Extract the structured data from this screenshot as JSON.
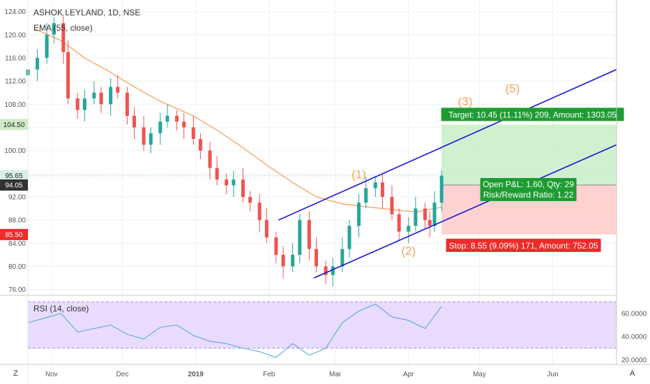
{
  "header": {
    "symbol_title": "ASHOK LEYLAND, 1D, NSE",
    "ema_label": "EMA (55, close)",
    "rsi_label": "RSI (14, close)"
  },
  "toolbar": {
    "left_corner": "Z",
    "right_corner": "A"
  },
  "colors": {
    "up": "#26a69a",
    "down": "#ef5350",
    "ema": "#f5a35c",
    "channel": "#1515d6",
    "rsi": "#4aa3d8",
    "rsi_band": "#e9dcff",
    "target_zone": "#c8eec8",
    "stop_zone": "#ffcaca",
    "target_box": "#1e9c33",
    "stop_box": "#ee2a2a",
    "price_tag_dark": "#333333",
    "price_tag_green": "#cfe9c7",
    "price_tag_red": "#ee2a2a",
    "wave_labels": "#f5a35c"
  },
  "price_tags": {
    "target": "104.50",
    "current": "95.65",
    "entry": "94.05",
    "stop": "85.50"
  },
  "trade": {
    "target_text": "Target: 10.45 (11.11%) 209, Amount: 1303.05",
    "pnl_text": "Open P&L: 1.60, Qty: 29",
    "rr_text": "Risk/Reward Ratio: 1.22",
    "stop_text": "Stop: 8.55 (9.09%) 171, Amount: 752.05"
  },
  "wave_labels": [
    {
      "text": "(1)",
      "date": "2019-03-11",
      "price": 95.2
    },
    {
      "text": "(2)",
      "date": "2019-04-01",
      "price": 82.0
    },
    {
      "text": "(3)",
      "date": "2019-04-25",
      "price": 107.8
    },
    {
      "text": "(5)",
      "date": "2019-05-15",
      "price": 110.0
    }
  ],
  "chart_data": {
    "type": "candlestick",
    "title": "ASHOK LEYLAND, 1D, NSE",
    "x_axis": {
      "type": "date",
      "range": [
        "2018-10-22",
        "2019-06-28"
      ],
      "tick_labels": [
        {
          "label": "Nov",
          "date": "2018-11-01"
        },
        {
          "label": "Dec",
          "date": "2018-12-01"
        },
        {
          "label": "2019",
          "date": "2019-01-01"
        },
        {
          "label": "Feb",
          "date": "2019-02-01"
        },
        {
          "label": "Mar",
          "date": "2019-03-01"
        },
        {
          "label": "Apr",
          "date": "2019-04-01"
        },
        {
          "label": "May",
          "date": "2019-05-01"
        },
        {
          "label": "Jun",
          "date": "2019-06-01"
        }
      ]
    },
    "price_axis": {
      "range": [
        75,
        126
      ],
      "ticks": [
        "76.00",
        "80.00",
        "84.00",
        "88.00",
        "92.00",
        "96.00",
        "100.00",
        "104.00",
        "108.00",
        "112.00",
        "116.00",
        "120.00",
        "124.00"
      ]
    },
    "rsi_axis": {
      "range": [
        16,
        75
      ],
      "ticks": [
        "20.0000",
        "40.0000",
        "60.0000"
      ],
      "bands": [
        30,
        70
      ]
    },
    "price_series": [
      {
        "date": "2018-10-22",
        "close": 114.0
      },
      {
        "date": "2018-10-26",
        "close": 116.0
      },
      {
        "date": "2018-10-30",
        "close": 120.0
      },
      {
        "date": "2018-11-02",
        "close": 122.0
      },
      {
        "date": "2018-11-06",
        "close": 117.0
      },
      {
        "date": "2018-11-08",
        "close": 109.0
      },
      {
        "date": "2018-11-12",
        "close": 107.0
      },
      {
        "date": "2018-11-15",
        "close": 109.0
      },
      {
        "date": "2018-11-19",
        "close": 110.0
      },
      {
        "date": "2018-11-22",
        "close": 108.0
      },
      {
        "date": "2018-11-26",
        "close": 111.0
      },
      {
        "date": "2018-11-29",
        "close": 110.0
      },
      {
        "date": "2018-12-03",
        "close": 106.0
      },
      {
        "date": "2018-12-06",
        "close": 104.0
      },
      {
        "date": "2018-12-10",
        "close": 101.0
      },
      {
        "date": "2018-12-13",
        "close": 103.0
      },
      {
        "date": "2018-12-17",
        "close": 105.0
      },
      {
        "date": "2018-12-20",
        "close": 106.0
      },
      {
        "date": "2018-12-24",
        "close": 105.0
      },
      {
        "date": "2018-12-27",
        "close": 104.0
      },
      {
        "date": "2018-12-31",
        "close": 102.0
      },
      {
        "date": "2019-01-03",
        "close": 100.0
      },
      {
        "date": "2019-01-07",
        "close": 97.0
      },
      {
        "date": "2019-01-10",
        "close": 95.0
      },
      {
        "date": "2019-01-14",
        "close": 94.0
      },
      {
        "date": "2019-01-17",
        "close": 95.0
      },
      {
        "date": "2019-01-21",
        "close": 92.0
      },
      {
        "date": "2019-01-24",
        "close": 91.0
      },
      {
        "date": "2019-01-28",
        "close": 88.0
      },
      {
        "date": "2019-01-31",
        "close": 85.0
      },
      {
        "date": "2019-02-04",
        "close": 82.0
      },
      {
        "date": "2019-02-07",
        "close": 80.0
      },
      {
        "date": "2019-02-11",
        "close": 82.0
      },
      {
        "date": "2019-02-14",
        "close": 88.0
      },
      {
        "date": "2019-02-18",
        "close": 83.0
      },
      {
        "date": "2019-02-21",
        "close": 80.0
      },
      {
        "date": "2019-02-25",
        "close": 78.5
      },
      {
        "date": "2019-02-28",
        "close": 80.0
      },
      {
        "date": "2019-03-04",
        "close": 83.0
      },
      {
        "date": "2019-03-07",
        "close": 87.0
      },
      {
        "date": "2019-03-11",
        "close": 91.0
      },
      {
        "date": "2019-03-14",
        "close": 93.5
      },
      {
        "date": "2019-03-18",
        "close": 94.5
      },
      {
        "date": "2019-03-21",
        "close": 92.0
      },
      {
        "date": "2019-03-25",
        "close": 89.0
      },
      {
        "date": "2019-03-28",
        "close": 86.0
      },
      {
        "date": "2019-04-01",
        "close": 87.0
      },
      {
        "date": "2019-04-04",
        "close": 90.0
      },
      {
        "date": "2019-04-08",
        "close": 88.0
      },
      {
        "date": "2019-04-10",
        "close": 87.0
      },
      {
        "date": "2019-04-12",
        "close": 91.0
      },
      {
        "date": "2019-04-15",
        "close": 95.65
      }
    ],
    "ema_series": [
      {
        "date": "2018-10-25",
        "value": 121.0
      },
      {
        "date": "2018-11-05",
        "value": 119.0
      },
      {
        "date": "2018-11-15",
        "value": 116.0
      },
      {
        "date": "2018-11-26",
        "value": 113.5
      },
      {
        "date": "2018-12-06",
        "value": 111.0
      },
      {
        "date": "2018-12-17",
        "value": 108.5
      },
      {
        "date": "2018-12-31",
        "value": 106.0
      },
      {
        "date": "2019-01-10",
        "value": 103.5
      },
      {
        "date": "2019-01-21",
        "value": 100.5
      },
      {
        "date": "2019-01-31",
        "value": 97.5
      },
      {
        "date": "2019-02-11",
        "value": 94.5
      },
      {
        "date": "2019-02-21",
        "value": 92.0
      },
      {
        "date": "2019-03-04",
        "value": 90.8
      },
      {
        "date": "2019-03-14",
        "value": 90.3
      },
      {
        "date": "2019-03-25",
        "value": 89.8
      },
      {
        "date": "2019-04-04",
        "value": 89.4
      },
      {
        "date": "2019-04-15",
        "value": 90.2
      }
    ],
    "channel_lines": [
      {
        "name": "upper",
        "start": {
          "date": "2019-02-05",
          "price": 88.0
        },
        "end": {
          "date": "2019-06-28",
          "price": 114.0
        }
      },
      {
        "name": "lower",
        "start": {
          "date": "2019-02-20",
          "price": 78.0
        },
        "end": {
          "date": "2019-06-28",
          "price": 101.0
        }
      }
    ],
    "position": {
      "start_date": "2019-04-15",
      "end_date": "2019-06-28",
      "entry": 94.05,
      "target": 104.5,
      "stop": 85.5
    },
    "rsi_series": [
      {
        "date": "2018-10-22",
        "value": 52
      },
      {
        "date": "2018-10-29",
        "value": 56
      },
      {
        "date": "2018-11-05",
        "value": 60
      },
      {
        "date": "2018-11-12",
        "value": 44
      },
      {
        "date": "2018-11-19",
        "value": 47
      },
      {
        "date": "2018-11-26",
        "value": 50
      },
      {
        "date": "2018-12-03",
        "value": 42
      },
      {
        "date": "2018-12-10",
        "value": 38
      },
      {
        "date": "2018-12-17",
        "value": 48
      },
      {
        "date": "2018-12-24",
        "value": 50
      },
      {
        "date": "2018-12-31",
        "value": 41
      },
      {
        "date": "2019-01-07",
        "value": 36
      },
      {
        "date": "2019-01-14",
        "value": 34
      },
      {
        "date": "2019-01-21",
        "value": 30
      },
      {
        "date": "2019-01-28",
        "value": 27
      },
      {
        "date": "2019-02-04",
        "value": 22
      },
      {
        "date": "2019-02-11",
        "value": 34
      },
      {
        "date": "2019-02-18",
        "value": 24
      },
      {
        "date": "2019-02-25",
        "value": 30
      },
      {
        "date": "2019-03-04",
        "value": 52
      },
      {
        "date": "2019-03-11",
        "value": 62
      },
      {
        "date": "2019-03-18",
        "value": 68
      },
      {
        "date": "2019-03-25",
        "value": 57
      },
      {
        "date": "2019-04-01",
        "value": 54
      },
      {
        "date": "2019-04-08",
        "value": 47
      },
      {
        "date": "2019-04-15",
        "value": 66
      }
    ]
  }
}
